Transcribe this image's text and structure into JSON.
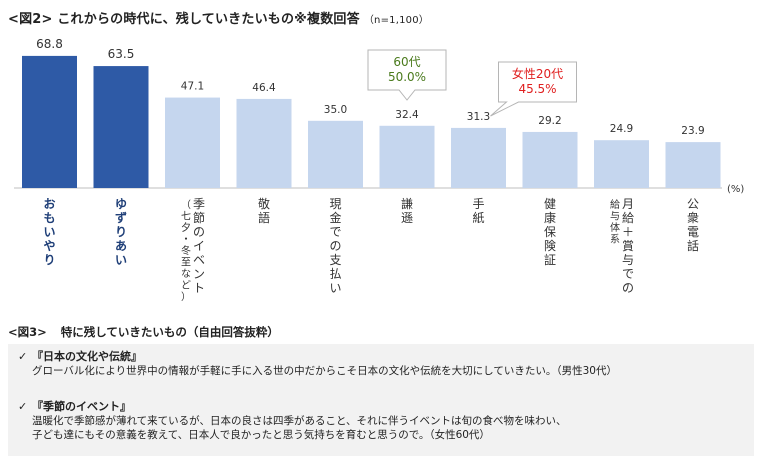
{
  "figure2": {
    "title": "<図2> これからの時代に、残していきたいもの※複数回答",
    "sample_note": "（n=1,100）",
    "unit_label": "(%)"
  },
  "chart_data": {
    "type": "bar",
    "title": "これからの時代に、残していきたいもの※複数回答",
    "categories": [
      [
        "おもいやり"
      ],
      [
        "ゆずりあい"
      ],
      [
        "季節のイベント",
        "（七夕・冬至など）"
      ],
      [
        "敬語"
      ],
      [
        "現金での支払い"
      ],
      [
        "謙遜"
      ],
      [
        "手紙"
      ],
      [
        "健康保険証"
      ],
      [
        "月給＋賞与での",
        "給与体系"
      ],
      [
        "公衆電話"
      ]
    ],
    "values": [
      68.8,
      63.5,
      47.1,
      46.4,
      35.0,
      32.4,
      31.3,
      29.2,
      24.9,
      23.9
    ],
    "value_labels": [
      "68.8",
      "63.5",
      "47.1",
      "46.4",
      "35.0",
      "32.4",
      "31.3",
      "29.2",
      "24.9",
      "23.9"
    ],
    "highlight": [
      true,
      true,
      false,
      false,
      false,
      false,
      false,
      false,
      false,
      false
    ],
    "ylabel": "(%)",
    "ylim": [
      0,
      75
    ],
    "colors": {
      "highlight": "#2e5aa6",
      "normal": "#c5d6ee",
      "highlight_text": "#1f3f78",
      "callout_green": "#4a7a1c",
      "callout_red": "#e02020"
    },
    "annotations": [
      {
        "bar_index": 5,
        "lines": [
          "60代",
          "50.0%"
        ],
        "color": "#4a7a1c"
      },
      {
        "bar_index": 6,
        "lines": [
          "女性20代",
          "45.5%"
        ],
        "color": "#e02020"
      }
    ]
  },
  "figure3": {
    "title": "<図3>",
    "subtitle": "特に残していきたいもの（自由回答抜粋）",
    "items": [
      {
        "check": "✓",
        "heading": "『日本の文化や伝統』",
        "lines": [
          "グローバル化により世界中の情報が手軽に手に入る世の中だからこそ日本の文化や伝統を大切にしていきたい。（男性30代）"
        ]
      },
      {
        "check": "✓",
        "heading": "『季節のイベント』",
        "lines": [
          "温暖化で季節感が薄れて来ているが、日本の良さは四季があること、それに伴うイベントは旬の食べ物を味わい、",
          "子ども達にもその意義を教えて、日本人で良かったと思う気持ちを育むと思うので。（女性60代）"
        ]
      }
    ]
  }
}
